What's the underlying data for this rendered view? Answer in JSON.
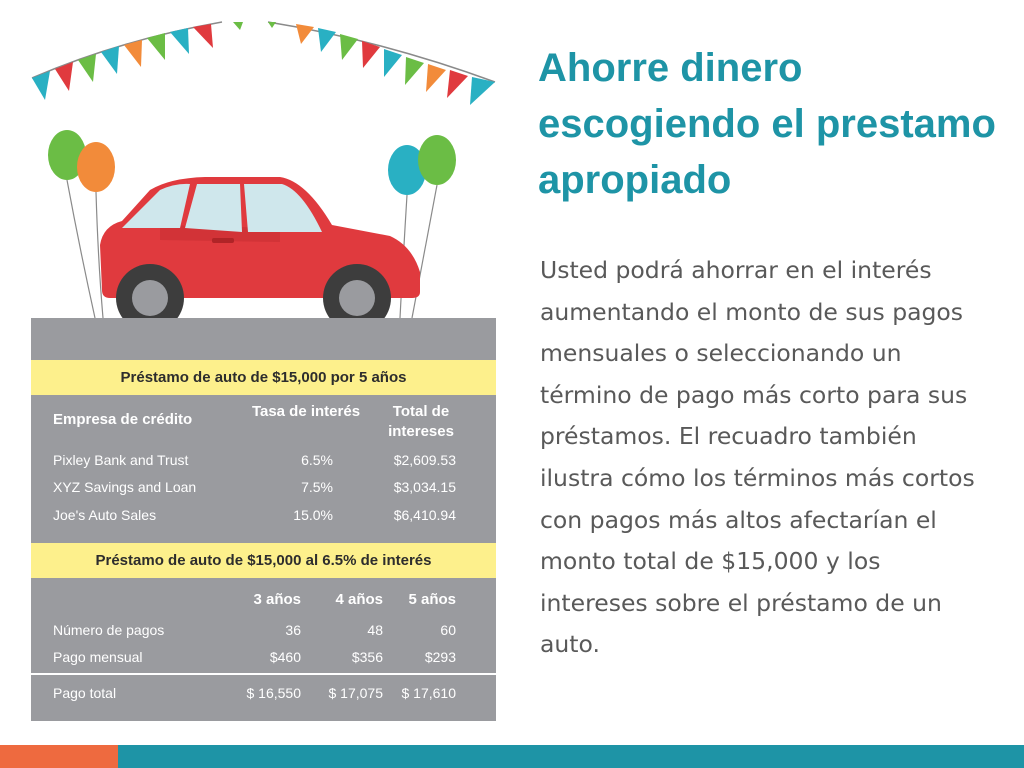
{
  "title": "Ahorre dinero escogiendo el prestamo apropiado",
  "body": "Usted podrá ahorrar en el interés aumentando el monto de sus pagos mensuales o seleccionando un término de pago más corto para sus préstamos. El recuadro también ilustra cómo los términos más cortos con pagos más altos afectarían el monto total de $15,000 y los intereses sobre el préstamo de un auto.",
  "colors": {
    "title": "#1e94a6",
    "panel": "#9a9b9f",
    "highlight": "#fdf08c",
    "accent_orange": "#ee6a3f",
    "accent_teal": "#1e94a6",
    "car": "#e03a3e"
  },
  "illustration": {
    "icons": [
      "bunting-icon",
      "balloons-icon",
      "car-icon"
    ]
  },
  "table1": {
    "title": "Préstamo de auto de $15,000 por 5 años",
    "headers": [
      "Empresa de crédito",
      "Tasa de interés",
      "Total de intereses"
    ],
    "rows": [
      [
        "Pixley Bank and Trust",
        "6.5%",
        "$2,609.53"
      ],
      [
        "XYZ Savings and Loan",
        "7.5%",
        "$3,034.15"
      ],
      [
        "Joe's Auto Sales",
        "15.0%",
        "$6,410.94"
      ]
    ]
  },
  "table2": {
    "title": "Préstamo de auto de $15,000 al 6.5% de interés",
    "headers": [
      "3 años",
      "4 años",
      "5 años"
    ],
    "rows": [
      [
        "Número de pagos",
        "36",
        "48",
        "60"
      ],
      [
        "Pago mensual",
        "$460",
        "$356",
        "$293"
      ]
    ],
    "total": [
      "Pago total",
      "$ 16,550",
      "$ 17,075",
      "$ 17,610"
    ]
  }
}
